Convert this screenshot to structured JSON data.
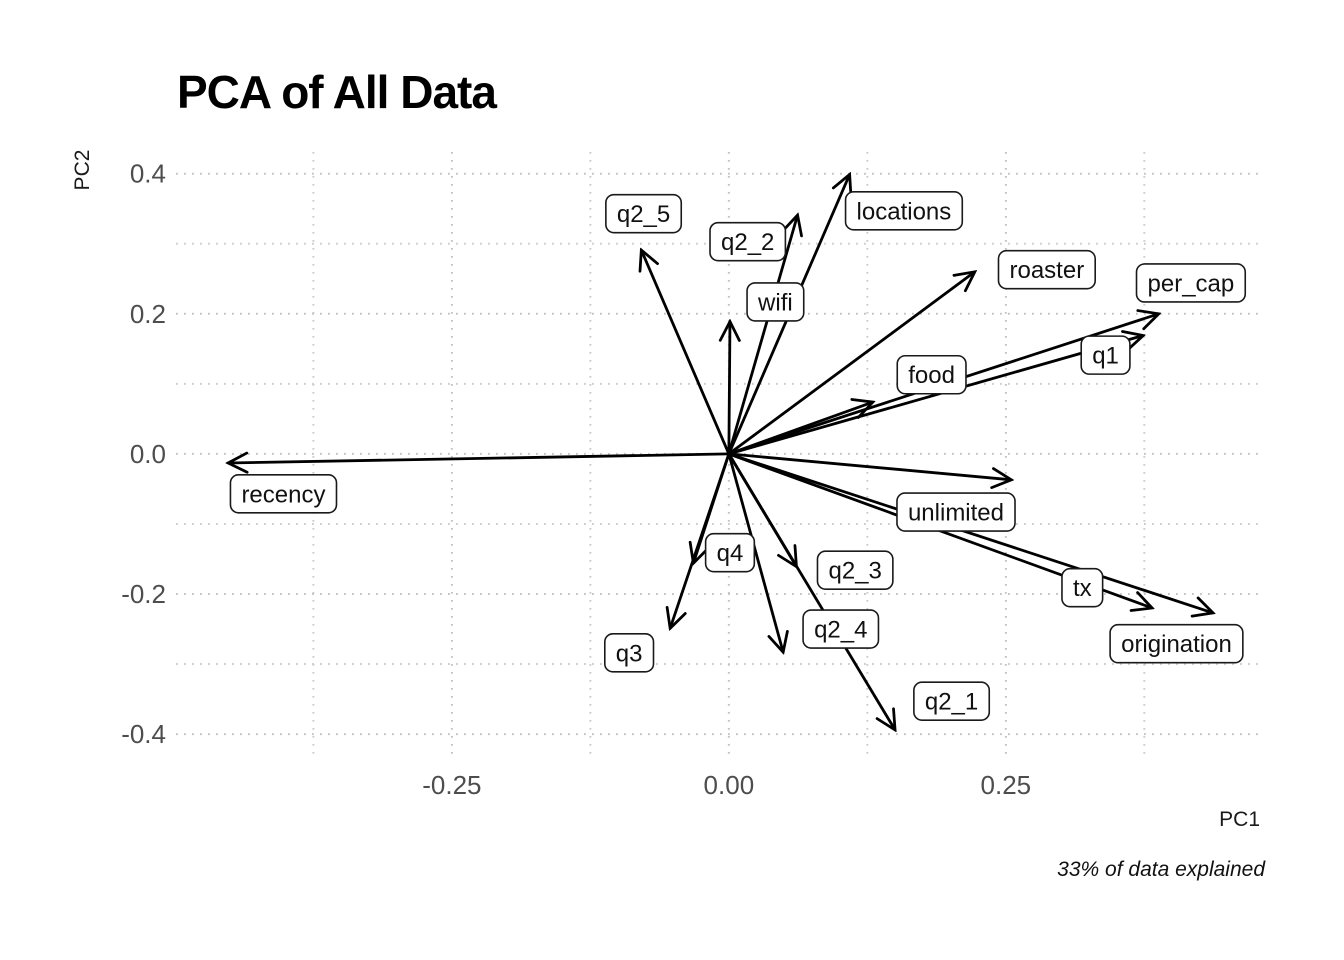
{
  "chart_data": {
    "type": "scatter",
    "subtype": "pca-biplot-arrows",
    "title": "PCA of All Data",
    "xlabel": "PC1",
    "ylabel": "PC2",
    "caption": "33% of data explained",
    "grid": "dotted",
    "legend": "none",
    "xlim": [
      -0.499,
      0.483
    ],
    "ylim": [
      -0.437,
      0.431
    ],
    "x_ticks": [
      {
        "value": -0.25,
        "label": "-0.25"
      },
      {
        "value": 0.0,
        "label": "0.00"
      },
      {
        "value": 0.25,
        "label": "0.25"
      }
    ],
    "y_ticks": [
      {
        "value": 0.4,
        "label": "0.4"
      },
      {
        "value": 0.2,
        "label": "0.2"
      },
      {
        "value": 0.0,
        "label": "0.0"
      },
      {
        "value": -0.2,
        "label": "-0.2"
      },
      {
        "value": -0.4,
        "label": "-0.4"
      }
    ],
    "x_minor_gridlines": [
      -0.375,
      -0.125,
      0.125,
      0.375
    ],
    "y_minor_gridlines": [
      0.3,
      0.1,
      -0.1,
      -0.3
    ],
    "arrow_origin": {
      "x": 0,
      "y": 0
    },
    "vectors": [
      {
        "name": "recency",
        "x": -0.452,
        "y": -0.013,
        "label_x": -0.402,
        "label_y": -0.057
      },
      {
        "name": "q2_5",
        "x": -0.079,
        "y": 0.291,
        "label_x": -0.077,
        "label_y": 0.343
      },
      {
        "name": "q2_2",
        "x": 0.062,
        "y": 0.341,
        "label_x": 0.017,
        "label_y": 0.303
      },
      {
        "name": "locations",
        "x": 0.109,
        "y": 0.399,
        "label_x": 0.158,
        "label_y": 0.347
      },
      {
        "name": "wifi",
        "x": 0.001,
        "y": 0.189,
        "label_x": 0.042,
        "label_y": 0.217
      },
      {
        "name": "roaster",
        "x": 0.222,
        "y": 0.26,
        "label_x": 0.287,
        "label_y": 0.263
      },
      {
        "name": "per_cap",
        "x": 0.388,
        "y": 0.2,
        "label_x": 0.417,
        "label_y": 0.244
      },
      {
        "name": "q1",
        "x": 0.374,
        "y": 0.169,
        "label_x": 0.34,
        "label_y": 0.141
      },
      {
        "name": "food",
        "x": 0.13,
        "y": 0.074,
        "label_x": 0.183,
        "label_y": 0.113
      },
      {
        "name": "unlimited",
        "x": 0.255,
        "y": -0.037,
        "label_x": 0.205,
        "label_y": -0.083
      },
      {
        "name": "tx",
        "x": 0.382,
        "y": -0.22,
        "label_x": 0.319,
        "label_y": -0.191
      },
      {
        "name": "origination",
        "x": 0.437,
        "y": -0.227,
        "label_x": 0.404,
        "label_y": -0.271
      },
      {
        "name": "q4",
        "x": -0.032,
        "y": -0.156,
        "label_x": 0.001,
        "label_y": -0.141
      },
      {
        "name": "q3",
        "x": -0.053,
        "y": -0.249,
        "label_x": -0.09,
        "label_y": -0.284
      },
      {
        "name": "q2_3",
        "x": 0.061,
        "y": -0.161,
        "label_x": 0.114,
        "label_y": -0.166
      },
      {
        "name": "q2_4",
        "x": 0.049,
        "y": -0.283,
        "label_x": 0.101,
        "label_y": -0.25
      },
      {
        "name": "q2_1",
        "x": 0.15,
        "y": -0.394,
        "label_x": 0.201,
        "label_y": -0.353
      }
    ],
    "colors": {
      "background": "#ffffff",
      "arrow": "#000000",
      "label_border": "#1a1a1a",
      "label_fill": "#ffffff",
      "grid_major": "#c4c4c4",
      "grid_minor": "#cdcdcd",
      "tick_text": "#4d4d4d",
      "axis_title_text": "#1a1a1a"
    }
  }
}
